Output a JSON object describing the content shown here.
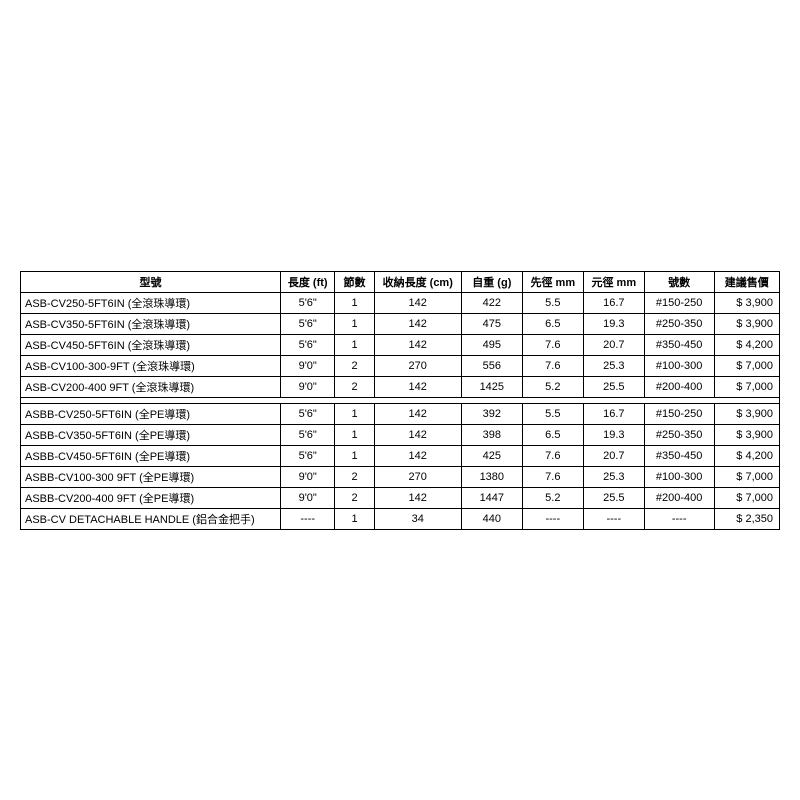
{
  "columns": [
    "型號",
    "長度 (ft)",
    "節數",
    "收納長度 (cm)",
    "自重 (g)",
    "先徑 mm",
    "元徑 mm",
    "號數",
    "建議售價"
  ],
  "groups": [
    [
      {
        "model": "ASB-CV250-5FT6IN (全滾珠導環)",
        "length": "5'6\"",
        "sections": "1",
        "closed": "142",
        "weight": "422",
        "tip": "5.5",
        "butt": "16.7",
        "line": "#150-250",
        "price": "$  3,900"
      },
      {
        "model": "ASB-CV350-5FT6IN (全滾珠導環)",
        "length": "5'6\"",
        "sections": "1",
        "closed": "142",
        "weight": "475",
        "tip": "6.5",
        "butt": "19.3",
        "line": "#250-350",
        "price": "$  3,900"
      },
      {
        "model": "ASB-CV450-5FT6IN (全滾珠導環)",
        "length": "5'6\"",
        "sections": "1",
        "closed": "142",
        "weight": "495",
        "tip": "7.6",
        "butt": "20.7",
        "line": "#350-450",
        "price": "$  4,200"
      },
      {
        "model": "ASB-CV100-300-9FT (全滾珠導環)",
        "length": "9'0\"",
        "sections": "2",
        "closed": "270",
        "weight": "556",
        "tip": "7.6",
        "butt": "25.3",
        "line": "#100-300",
        "price": "$  7,000"
      },
      {
        "model": "ASB-CV200-400 9FT (全滾珠導環)",
        "length": "9'0\"",
        "sections": "2",
        "closed": "142",
        "weight": "1425",
        "tip": "5.2",
        "butt": "25.5",
        "line": "#200-400",
        "price": "$  7,000"
      }
    ],
    [
      {
        "model": "ASBB-CV250-5FT6IN (全PE導環)",
        "length": "5'6\"",
        "sections": "1",
        "closed": "142",
        "weight": "392",
        "tip": "5.5",
        "butt": "16.7",
        "line": "#150-250",
        "price": "$  3,900"
      },
      {
        "model": "ASBB-CV350-5FT6IN (全PE導環)",
        "length": "5'6\"",
        "sections": "1",
        "closed": "142",
        "weight": "398",
        "tip": "6.5",
        "butt": "19.3",
        "line": "#250-350",
        "price": "$  3,900"
      },
      {
        "model": "ASBB-CV450-5FT6IN (全PE導環)",
        "length": "5'6\"",
        "sections": "1",
        "closed": "142",
        "weight": "425",
        "tip": "7.6",
        "butt": "20.7",
        "line": "#350-450",
        "price": "$  4,200"
      },
      {
        "model": "ASBB-CV100-300 9FT (全PE導環)",
        "length": "9'0\"",
        "sections": "2",
        "closed": "270",
        "weight": "1380",
        "tip": "7.6",
        "butt": "25.3",
        "line": "#100-300",
        "price": "$  7,000"
      },
      {
        "model": "ASBB-CV200-400 9FT (全PE導環)",
        "length": "9'0\"",
        "sections": "2",
        "closed": "142",
        "weight": "1447",
        "tip": "5.2",
        "butt": "25.5",
        "line": "#200-400",
        "price": "$  7,000"
      },
      {
        "model": "ASB-CV  DETACHABLE HANDLE (鋁合金把手)",
        "length": "----",
        "sections": "1",
        "closed": "34",
        "weight": "440",
        "tip": "----",
        "butt": "----",
        "line": "----",
        "price": "$  2,350"
      }
    ]
  ]
}
